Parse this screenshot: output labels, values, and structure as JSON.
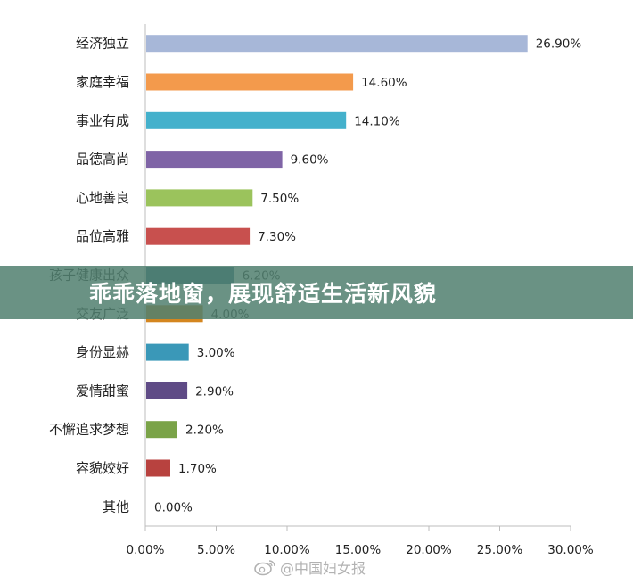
{
  "chart_data": {
    "type": "bar",
    "orientation": "horizontal",
    "categories": [
      "经济独立",
      "家庭幸福",
      "事业有成",
      "品德高尚",
      "心地善良",
      "品位高雅",
      "孩子健康出众",
      "交友广泛",
      "身份显赫",
      "爱情甜蜜",
      "不懈追求梦想",
      "容貌姣好",
      "其他"
    ],
    "values": [
      26.9,
      14.6,
      14.1,
      9.6,
      7.5,
      7.3,
      6.2,
      4.0,
      3.0,
      2.9,
      2.2,
      1.7,
      0.0
    ],
    "value_labels": [
      "26.90%",
      "14.60%",
      "14.10%",
      "9.60%",
      "7.50%",
      "7.30%",
      "6.20%",
      "4.00%",
      "3.00%",
      "2.90%",
      "2.20%",
      "1.70%",
      "0.00%"
    ],
    "colors": [
      "#a7b7d8",
      "#f39a4c",
      "#44b1cc",
      "#7f64a6",
      "#9bc35c",
      "#c8504e",
      "#2f6c86",
      "#d4861f",
      "#3a98b8",
      "#5f4b86",
      "#7aa348",
      "#b8423f",
      "#7f7f7f"
    ],
    "xticks": [
      "0.00%",
      "5.00%",
      "10.00%",
      "15.00%",
      "20.00%",
      "25.00%",
      "30.00%"
    ],
    "xlim": [
      0,
      30
    ],
    "title": "",
    "xlabel": "",
    "ylabel": "",
    "grid": false,
    "legend": "none"
  },
  "banner": {
    "title": "乖乖落地窗，展现舒适生活新风貌"
  },
  "watermark": {
    "text": "@中国妇女报",
    "icon": "weibo-icon"
  }
}
